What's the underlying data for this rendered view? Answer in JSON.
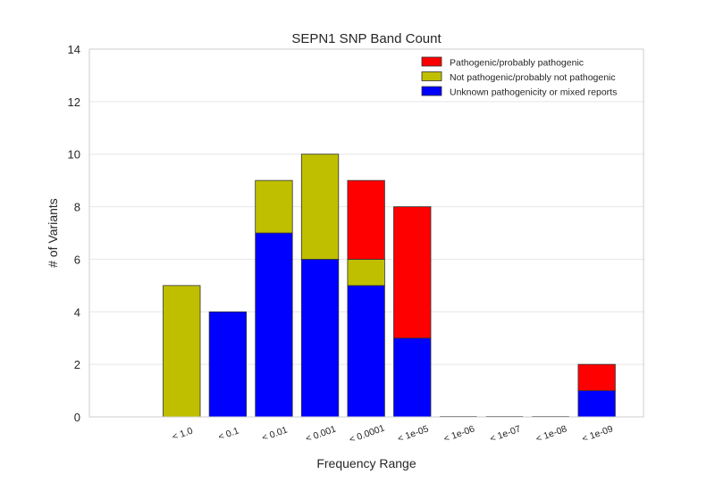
{
  "chart_data": {
    "type": "bar",
    "stacked": true,
    "title": "SEPN1 SNP Band Count",
    "xlabel": "Frequency Range",
    "ylabel": "# of Variants",
    "ylim": [
      0,
      14
    ],
    "yticks": [
      0,
      2,
      4,
      6,
      8,
      10,
      12,
      14
    ],
    "grid": true,
    "legend_position": "top-right",
    "categories": [
      "< 1.0",
      "< 0.1",
      "< 0.01",
      "< 0.001",
      "< 0.0001",
      "< 1e-05",
      "< 1e-06",
      "< 1e-07",
      "< 1e-08",
      "< 1e-09"
    ],
    "series": [
      {
        "name": "Unknown pathogenicity or mixed reports",
        "color": "#0000ff",
        "values": [
          0,
          4,
          7,
          6,
          5,
          3,
          0,
          0,
          0,
          1
        ]
      },
      {
        "name": "Not pathogenic/probably not pathogenic",
        "color": "#bfbf00",
        "values": [
          5,
          0,
          2,
          4,
          1,
          0,
          0,
          0,
          0,
          0
        ]
      },
      {
        "name": "Pathogenic/probably pathogenic",
        "color": "#ff0000",
        "values": [
          0,
          0,
          0,
          0,
          3,
          5,
          0,
          0,
          0,
          1
        ]
      }
    ],
    "legend_order": [
      2,
      1,
      0
    ]
  }
}
